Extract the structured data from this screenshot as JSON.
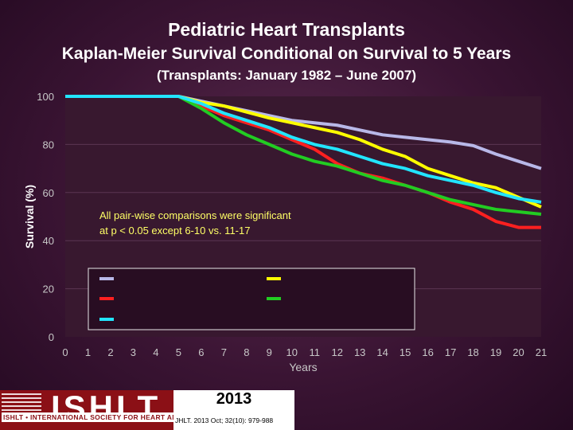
{
  "header": {
    "title": "Pediatric Heart Transplants",
    "subtitle": "Kaplan-Meier Survival Conditional on Survival to 5 Years",
    "subtitle2": "(Transplants: January 1982 – June 2007)"
  },
  "chart_data": {
    "type": "line",
    "title": "Pediatric Heart Transplants",
    "xlabel": "Years",
    "ylabel": "Survival (%)",
    "xlim": [
      0,
      21
    ],
    "ylim": [
      0,
      100
    ],
    "x_ticks": [
      "0",
      "1",
      "2",
      "3",
      "4",
      "5",
      "6",
      "7",
      "8",
      "9",
      "10",
      "11",
      "12",
      "13",
      "14",
      "15",
      "16",
      "17",
      "18",
      "19",
      "20",
      "21"
    ],
    "y_ticks": [
      "0",
      "20",
      "40",
      "60",
      "80",
      "100"
    ],
    "annotation_line1": "All pair-wise comparisons were significant",
    "annotation_line2": "at p < 0.05 except 6-10 vs. 11-17",
    "series": [
      {
        "name": "",
        "color": "#b8b8e8",
        "x": [
          0,
          5,
          6,
          7,
          8,
          9,
          10,
          11,
          12,
          13,
          14,
          15,
          16,
          17,
          18,
          19,
          20,
          21
        ],
        "y": [
          100,
          100,
          98,
          96,
          94,
          92,
          90,
          89,
          88,
          86,
          84,
          83,
          82,
          81,
          79.5,
          76,
          73,
          70
        ]
      },
      {
        "name": "",
        "color": "#ffff00",
        "x": [
          0,
          5,
          6,
          7,
          8,
          9,
          10,
          11,
          12,
          13,
          14,
          15,
          16,
          17,
          18,
          19,
          20,
          21
        ],
        "y": [
          100,
          100,
          97.5,
          96,
          93.5,
          91,
          89,
          87,
          85,
          82,
          78,
          75,
          70,
          67,
          64,
          62,
          58,
          54
        ]
      },
      {
        "name": "",
        "color": "#ff2020",
        "x": [
          0,
          5,
          6,
          7,
          8,
          9,
          10,
          11,
          12,
          13,
          14,
          15,
          16,
          17,
          18,
          19,
          20,
          21
        ],
        "y": [
          100,
          100,
          96,
          92,
          89,
          86,
          82,
          78,
          72,
          68,
          66,
          63,
          60,
          56,
          53,
          48,
          45.5,
          45.5
        ]
      },
      {
        "name": "",
        "color": "#22cc22",
        "x": [
          0,
          5,
          6,
          7,
          8,
          9,
          10,
          11,
          12,
          13,
          14,
          15,
          16,
          17,
          18,
          19,
          20,
          21
        ],
        "y": [
          100,
          100,
          95,
          89,
          84,
          80,
          76,
          73,
          71,
          68,
          65,
          63,
          60,
          57,
          55,
          53,
          52,
          51
        ]
      },
      {
        "name": "",
        "color": "#22e5ff",
        "x": [
          0,
          5,
          6,
          7,
          8,
          9,
          10,
          11,
          12,
          13,
          14,
          15,
          16,
          17,
          18,
          19,
          20,
          21
        ],
        "y": [
          100,
          100,
          97,
          93,
          90,
          87,
          83,
          80,
          78,
          75,
          72,
          70,
          67,
          65,
          63,
          60,
          57.5,
          56
        ]
      }
    ]
  },
  "footer": {
    "org_acronym": "ISHLT",
    "org_name": "ISHLT • INTERNATIONAL SOCIETY FOR HEART AND LUNG TRANSPLANTATION",
    "year": "2013",
    "citation": "JHLT. 2013 Oct; 32(10): 979-988"
  }
}
